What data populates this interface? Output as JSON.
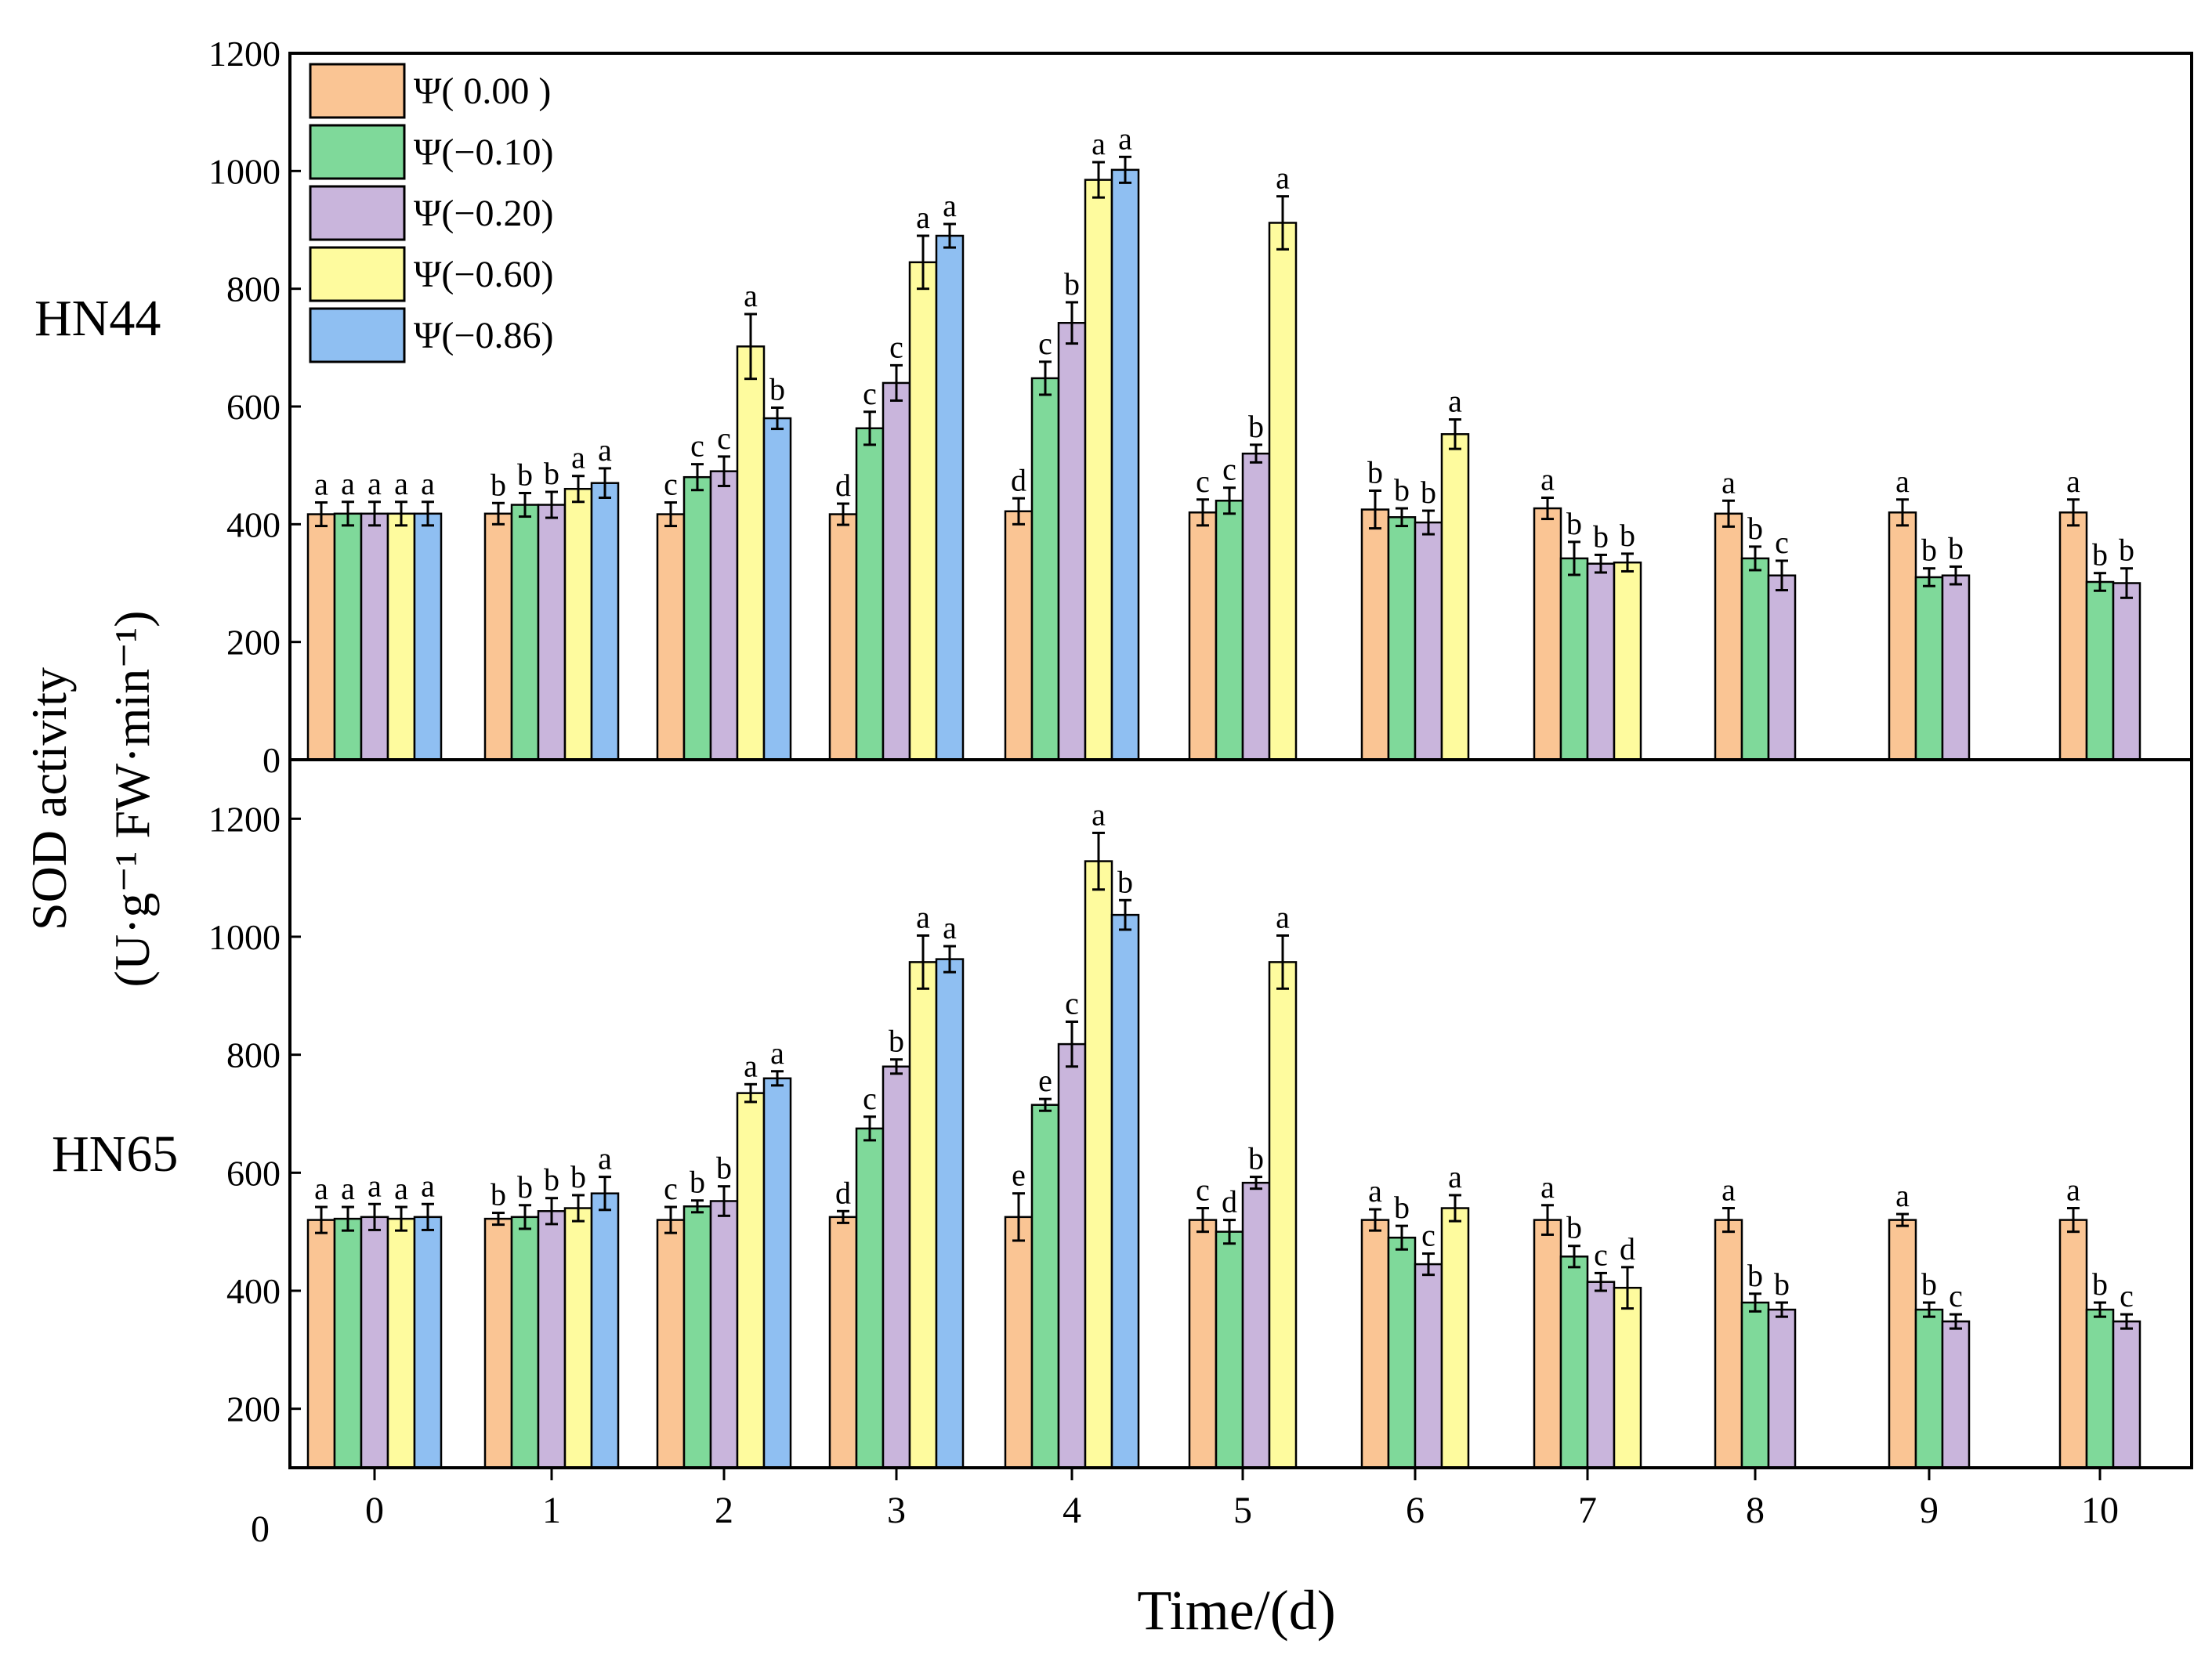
{
  "chart_data": {
    "type": "bar",
    "xlabel": "Time/(d)",
    "ylabel": "SOD activity",
    "ylabel_unit": "(U·g⁻¹ FW·min⁻¹)",
    "x_ticks": [
      "0",
      "1",
      "2",
      "3",
      "4",
      "5",
      "6",
      "7",
      "8",
      "9",
      "10"
    ],
    "x_origin_label": "0",
    "legend": {
      "placement": "top-left",
      "entries": [
        "Ψ( 0.00 )",
        "Ψ(−0.10)",
        "Ψ(−0.20)",
        "Ψ(−0.60)",
        "Ψ(−0.86)"
      ]
    },
    "series_colors": [
      "#fac594",
      "#7fd99a",
      "#c9b5dc",
      "#fefb9e",
      "#8fbff2"
    ],
    "panels": [
      {
        "label": "HN44",
        "ylim": [
          0,
          1200
        ],
        "yticks": [
          "0",
          "200",
          "400",
          "600",
          "800",
          "1000",
          "1200"
        ],
        "groups": [
          {
            "x": "0",
            "values": [
              417,
              418,
              418,
              418,
              418
            ],
            "errors": [
              20,
              20,
              20,
              20,
              20
            ],
            "letters": [
              "a",
              "a",
              "a",
              "a",
              "a"
            ]
          },
          {
            "x": "1",
            "values": [
              418,
              433,
              433,
              460,
              470
            ],
            "errors": [
              18,
              20,
              22,
              22,
              25
            ],
            "letters": [
              "b",
              "b",
              "b",
              "a",
              "a"
            ]
          },
          {
            "x": "2",
            "values": [
              417,
              480,
              490,
              702,
              580
            ],
            "errors": [
              20,
              22,
              25,
              55,
              18
            ],
            "letters": [
              "c",
              "c",
              "c",
              "a",
              "b"
            ]
          },
          {
            "x": "3",
            "values": [
              417,
              563,
              640,
              845,
              890
            ],
            "errors": [
              18,
              28,
              30,
              45,
              20
            ],
            "letters": [
              "d",
              "c",
              "c",
              "a",
              "a"
            ]
          },
          {
            "x": "4",
            "values": [
              422,
              648,
              742,
              985,
              1002
            ],
            "errors": [
              22,
              28,
              35,
              30,
              22
            ],
            "letters": [
              "d",
              "c",
              "b",
              "a",
              "a"
            ]
          },
          {
            "x": "5",
            "values": [
              420,
              440,
              520,
              912,
              null
            ],
            "errors": [
              22,
              22,
              15,
              45,
              null
            ],
            "letters": [
              "c",
              "c",
              "b",
              "a",
              ""
            ]
          },
          {
            "x": "6",
            "values": [
              425,
              412,
              403,
              553,
              null
            ],
            "errors": [
              32,
              15,
              20,
              25,
              null
            ],
            "letters": [
              "b",
              "b",
              "b",
              "a",
              ""
            ]
          },
          {
            "x": "7",
            "values": [
              427,
              342,
              333,
              335,
              null
            ],
            "errors": [
              18,
              28,
              15,
              15,
              null
            ],
            "letters": [
              "a",
              "b",
              "b",
              "b",
              ""
            ]
          },
          {
            "x": "8",
            "values": [
              418,
              342,
              313,
              null,
              null
            ],
            "errors": [
              22,
              20,
              25,
              null,
              null
            ],
            "letters": [
              "a",
              "b",
              "c",
              "",
              ""
            ]
          },
          {
            "x": "9",
            "values": [
              420,
              310,
              313,
              null,
              null
            ],
            "errors": [
              22,
              15,
              15,
              null,
              null
            ],
            "letters": [
              "a",
              "b",
              "b",
              "",
              ""
            ]
          },
          {
            "x": "10",
            "values": [
              420,
              302,
              300,
              null,
              null
            ],
            "errors": [
              22,
              15,
              25,
              null,
              null
            ],
            "letters": [
              "a",
              "b",
              "b",
              "",
              ""
            ]
          }
        ]
      },
      {
        "label": "HN65",
        "ylim": [
          100,
          1300
        ],
        "yticks": [
          "200",
          "400",
          "600",
          "800",
          "1000",
          "1200"
        ],
        "groups": [
          {
            "x": "0",
            "values": [
              520,
              522,
              525,
              522,
              525
            ],
            "errors": [
              22,
              20,
              22,
              20,
              22
            ],
            "letters": [
              "a",
              "a",
              "a",
              "a",
              "a"
            ]
          },
          {
            "x": "1",
            "values": [
              522,
              525,
              535,
              540,
              565
            ],
            "errors": [
              10,
              20,
              22,
              22,
              28
            ],
            "letters": [
              "b",
              "b",
              "b",
              "b",
              "a"
            ]
          },
          {
            "x": "2",
            "values": [
              520,
              543,
              552,
              735,
              760
            ],
            "errors": [
              22,
              10,
              25,
              15,
              12
            ],
            "letters": [
              "c",
              "b",
              "b",
              "a",
              "a"
            ]
          },
          {
            "x": "3",
            "values": [
              525,
              675,
              780,
              957,
              962
            ],
            "errors": [
              10,
              20,
              12,
              45,
              22
            ],
            "letters": [
              "d",
              "c",
              "b",
              "a",
              "a"
            ]
          },
          {
            "x": "4",
            "values": [
              525,
              715,
              818,
              1128,
              1037
            ],
            "errors": [
              40,
              10,
              38,
              48,
              25
            ],
            "letters": [
              "e",
              "e",
              "c",
              "a",
              "b"
            ]
          },
          {
            "x": "5",
            "values": [
              520,
              500,
              583,
              957,
              null
            ],
            "errors": [
              20,
              20,
              10,
              45,
              null
            ],
            "letters": [
              "c",
              "d",
              "b",
              "a",
              ""
            ]
          },
          {
            "x": "6",
            "values": [
              520,
              490,
              445,
              540,
              null
            ],
            "errors": [
              18,
              20,
              18,
              22,
              null
            ],
            "letters": [
              "a",
              "b",
              "c",
              "a",
              ""
            ]
          },
          {
            "x": "7",
            "values": [
              520,
              458,
              415,
              405,
              null
            ],
            "errors": [
              25,
              18,
              15,
              35,
              null
            ],
            "letters": [
              "a",
              "b",
              "c",
              "d",
              ""
            ]
          },
          {
            "x": "8",
            "values": [
              520,
              380,
              368,
              null,
              null
            ],
            "errors": [
              20,
              15,
              12,
              null,
              null
            ],
            "letters": [
              "a",
              "b",
              "b",
              "",
              ""
            ]
          },
          {
            "x": "9",
            "values": [
              520,
              368,
              348,
              null,
              null
            ],
            "errors": [
              10,
              12,
              12,
              null,
              null
            ],
            "letters": [
              "a",
              "b",
              "c",
              "",
              ""
            ]
          },
          {
            "x": "10",
            "values": [
              520,
              368,
              348,
              null,
              null
            ],
            "errors": [
              20,
              12,
              12,
              null,
              null
            ],
            "letters": [
              "a",
              "b",
              "c",
              "",
              ""
            ]
          }
        ]
      }
    ]
  }
}
